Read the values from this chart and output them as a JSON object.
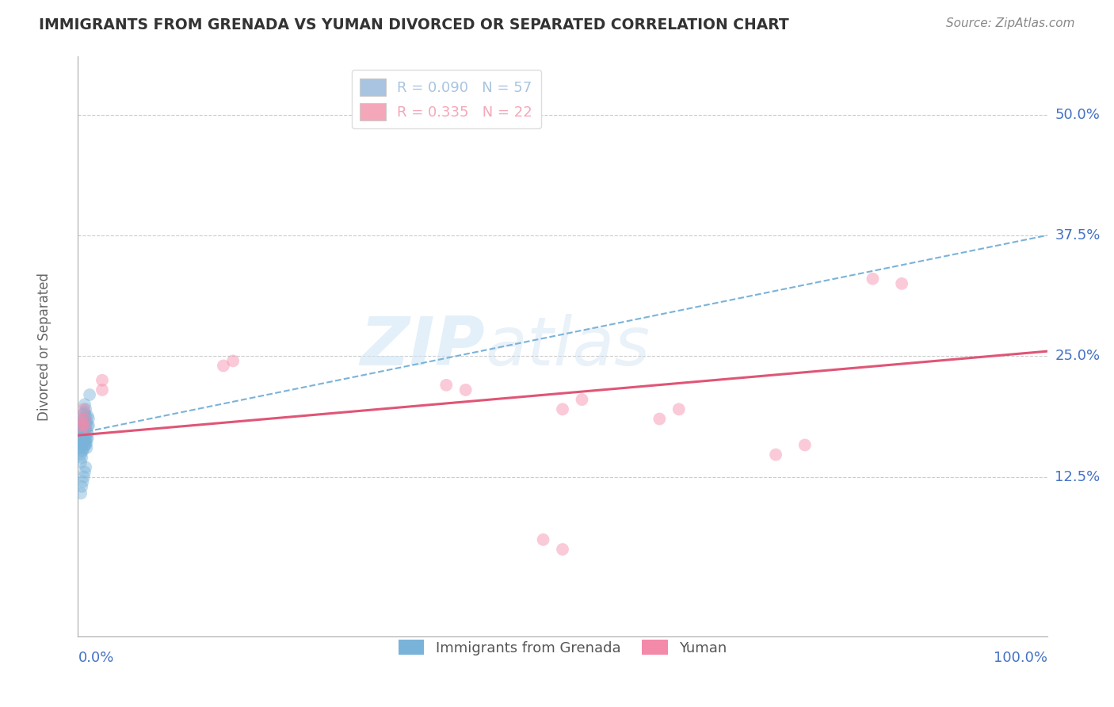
{
  "title": "IMMIGRANTS FROM GRENADA VS YUMAN DIVORCED OR SEPARATED CORRELATION CHART",
  "source_text": "Source: ZipAtlas.com",
  "ylabel": "Divorced or Separated",
  "x_label_bottom_left": "0.0%",
  "x_label_bottom_right": "100.0%",
  "y_tick_labels": [
    "12.5%",
    "25.0%",
    "37.5%",
    "50.0%"
  ],
  "y_tick_values": [
    0.125,
    0.25,
    0.375,
    0.5
  ],
  "xlim": [
    0.0,
    1.0
  ],
  "ylim": [
    -0.04,
    0.56
  ],
  "legend_entries": [
    {
      "label": "R = 0.090   N = 57",
      "color": "#a8c4e0"
    },
    {
      "label": "R = 0.335   N = 22",
      "color": "#f4a7b9"
    }
  ],
  "blue_scatter_x": [
    0.002,
    0.003,
    0.003,
    0.004,
    0.004,
    0.004,
    0.005,
    0.005,
    0.005,
    0.005,
    0.006,
    0.006,
    0.006,
    0.006,
    0.007,
    0.007,
    0.007,
    0.008,
    0.008,
    0.008,
    0.009,
    0.009,
    0.01,
    0.01,
    0.011,
    0.012,
    0.002,
    0.003,
    0.003,
    0.004,
    0.004,
    0.005,
    0.005,
    0.006,
    0.006,
    0.007,
    0.007,
    0.008,
    0.008,
    0.009,
    0.009,
    0.01,
    0.011,
    0.003,
    0.004,
    0.005,
    0.006,
    0.007,
    0.008,
    0.009,
    0.01,
    0.003,
    0.004,
    0.005,
    0.006,
    0.007,
    0.008
  ],
  "blue_scatter_y": [
    0.175,
    0.17,
    0.165,
    0.18,
    0.175,
    0.168,
    0.185,
    0.178,
    0.172,
    0.162,
    0.19,
    0.182,
    0.175,
    0.168,
    0.2,
    0.192,
    0.185,
    0.195,
    0.188,
    0.178,
    0.182,
    0.172,
    0.188,
    0.178,
    0.185,
    0.21,
    0.155,
    0.16,
    0.148,
    0.162,
    0.152,
    0.168,
    0.158,
    0.172,
    0.16,
    0.175,
    0.162,
    0.168,
    0.158,
    0.165,
    0.155,
    0.17,
    0.178,
    0.14,
    0.145,
    0.152,
    0.155,
    0.158,
    0.162,
    0.16,
    0.165,
    0.108,
    0.115,
    0.12,
    0.125,
    0.13,
    0.135
  ],
  "pink_scatter_x": [
    0.003,
    0.004,
    0.005,
    0.006,
    0.007,
    0.008,
    0.025,
    0.025,
    0.15,
    0.16,
    0.38,
    0.4,
    0.5,
    0.52,
    0.6,
    0.62,
    0.72,
    0.75,
    0.82,
    0.85,
    0.48,
    0.5
  ],
  "pink_scatter_y": [
    0.185,
    0.175,
    0.18,
    0.195,
    0.185,
    0.175,
    0.225,
    0.215,
    0.24,
    0.245,
    0.22,
    0.215,
    0.195,
    0.205,
    0.185,
    0.195,
    0.148,
    0.158,
    0.33,
    0.325,
    0.06,
    0.05
  ],
  "blue_line_x": [
    0.0,
    1.0
  ],
  "blue_line_y": [
    0.17,
    0.375
  ],
  "pink_line_x": [
    0.0,
    1.0
  ],
  "pink_line_y": [
    0.168,
    0.255
  ],
  "watermark_part1": "ZIP",
  "watermark_part2": "atlas",
  "scatter_size": 130,
  "scatter_alpha": 0.45,
  "blue_scatter_color": "#7ab3d9",
  "pink_scatter_color": "#f48aaa",
  "blue_line_color": "#7ab3d9",
  "pink_line_color": "#e05575",
  "grid_color": "#cccccc",
  "title_color": "#333333",
  "tick_label_color": "#4472c4",
  "background_color": "#ffffff",
  "bottom_legend": [
    {
      "label": "Immigrants from Grenada",
      "color": "#7ab3d9"
    },
    {
      "label": "Yuman",
      "color": "#f48aaa"
    }
  ]
}
